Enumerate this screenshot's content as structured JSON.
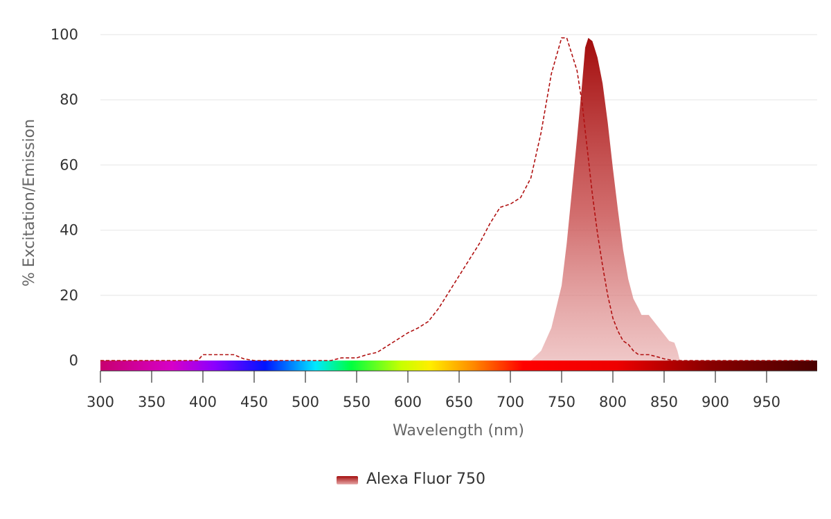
{
  "chart_data": {
    "type": "area",
    "title": "",
    "xlabel": "Wavelength (nm)",
    "ylabel": "% Excitation/Emission",
    "xlim": [
      300,
      995
    ],
    "ylim": [
      0,
      100
    ],
    "x_ticks": [
      300,
      350,
      400,
      450,
      500,
      550,
      600,
      650,
      700,
      750,
      800,
      850,
      900,
      950
    ],
    "y_ticks": [
      0,
      20,
      40,
      60,
      80,
      100
    ],
    "grid": "horizontal",
    "legend_position": "bottom-center",
    "wavelength_spectrum_bar": true,
    "series": [
      {
        "name": "Alexa Fluor 750",
        "kind": "excitation",
        "style": "dashed-line",
        "color": "#b01010",
        "points": [
          [
            300,
            0
          ],
          [
            395,
            0
          ],
          [
            400,
            1.8
          ],
          [
            430,
            1.8
          ],
          [
            440,
            0.5
          ],
          [
            450,
            0
          ],
          [
            525,
            0
          ],
          [
            535,
            0.8
          ],
          [
            550,
            0.8
          ],
          [
            560,
            1.8
          ],
          [
            570,
            2.5
          ],
          [
            580,
            4.5
          ],
          [
            590,
            6.5
          ],
          [
            600,
            8.5
          ],
          [
            610,
            10
          ],
          [
            620,
            12
          ],
          [
            630,
            16
          ],
          [
            640,
            21
          ],
          [
            650,
            26
          ],
          [
            660,
            31
          ],
          [
            670,
            36
          ],
          [
            680,
            42
          ],
          [
            690,
            47
          ],
          [
            700,
            48
          ],
          [
            710,
            50
          ],
          [
            720,
            56
          ],
          [
            730,
            70
          ],
          [
            740,
            88
          ],
          [
            750,
            99
          ],
          [
            755,
            99
          ],
          [
            760,
            94
          ],
          [
            765,
            89
          ],
          [
            770,
            79
          ],
          [
            775,
            65
          ],
          [
            780,
            51
          ],
          [
            785,
            39
          ],
          [
            790,
            29
          ],
          [
            795,
            20
          ],
          [
            800,
            13
          ],
          [
            805,
            9
          ],
          [
            810,
            6
          ],
          [
            815,
            5
          ],
          [
            820,
            3
          ],
          [
            825,
            1.8
          ],
          [
            835,
            1.8
          ],
          [
            845,
            1
          ],
          [
            850,
            0.5
          ],
          [
            860,
            0
          ],
          [
            995,
            0
          ]
        ]
      },
      {
        "name": "Alexa Fluor 750",
        "kind": "emission",
        "style": "filled-area",
        "color": "#b01010",
        "points": [
          [
            720,
            0
          ],
          [
            730,
            3
          ],
          [
            740,
            10
          ],
          [
            750,
            23
          ],
          [
            755,
            36
          ],
          [
            760,
            52
          ],
          [
            765,
            68
          ],
          [
            770,
            85
          ],
          [
            773,
            96
          ],
          [
            776,
            99
          ],
          [
            780,
            98
          ],
          [
            785,
            93
          ],
          [
            790,
            85
          ],
          [
            795,
            73
          ],
          [
            800,
            59
          ],
          [
            805,
            46
          ],
          [
            810,
            34
          ],
          [
            815,
            25
          ],
          [
            820,
            19
          ],
          [
            825,
            16
          ],
          [
            828,
            14
          ],
          [
            835,
            14
          ],
          [
            840,
            12
          ],
          [
            845,
            10
          ],
          [
            850,
            8
          ],
          [
            855,
            6
          ],
          [
            860,
            5.5
          ],
          [
            863,
            3
          ],
          [
            865,
            0.5
          ],
          [
            866,
            0
          ]
        ]
      }
    ]
  },
  "legend": {
    "label": "Alexa Fluor 750",
    "swatch_color": "#b01010"
  }
}
